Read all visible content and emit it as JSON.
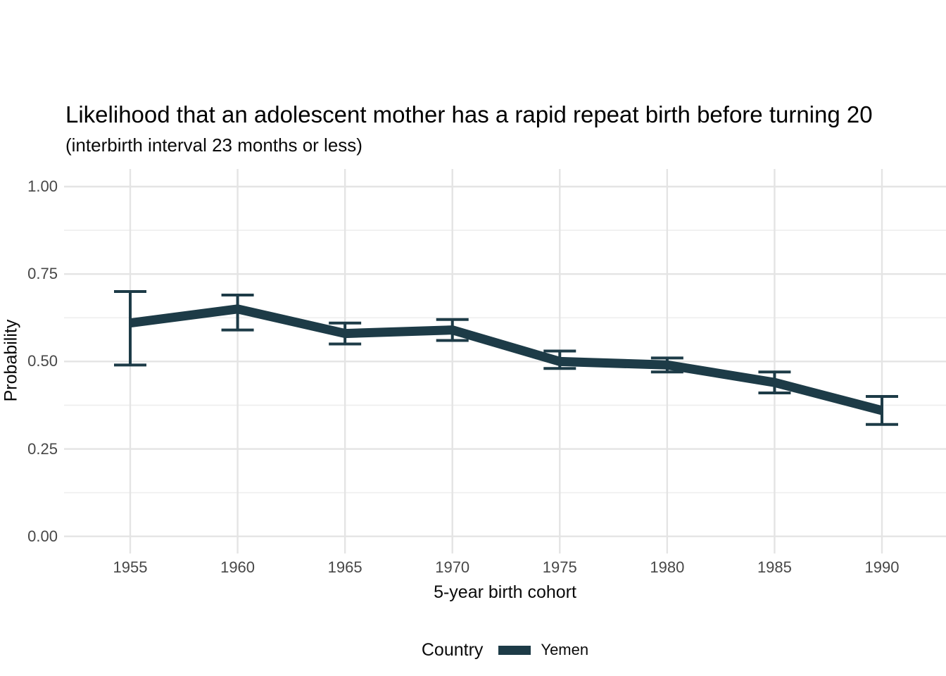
{
  "chart_data": {
    "type": "line",
    "title": "Likelihood that an adolescent mother has a rapid repeat birth before turning 20",
    "subtitle": "(interbirth interval 23 months or less)",
    "xlabel": "5-year birth cohort",
    "ylabel": "Probability",
    "x": [
      1955,
      1960,
      1965,
      1970,
      1975,
      1980,
      1985,
      1990
    ],
    "series": [
      {
        "name": "Yemen",
        "values": [
          0.61,
          0.65,
          0.58,
          0.59,
          0.5,
          0.49,
          0.44,
          0.36
        ],
        "ci_low": [
          0.49,
          0.59,
          0.55,
          0.56,
          0.48,
          0.47,
          0.41,
          0.32
        ],
        "ci_high": [
          0.7,
          0.69,
          0.61,
          0.62,
          0.53,
          0.51,
          0.47,
          0.4
        ]
      }
    ],
    "x_ticks": [
      "1955",
      "1960",
      "1965",
      "1970",
      "1975",
      "1980",
      "1985",
      "1990"
    ],
    "y_ticks": [
      "0.00",
      "0.25",
      "0.50",
      "0.75",
      "1.00"
    ],
    "ylim": [
      0,
      1
    ],
    "grid": "major and minor horizontal, major vertical only",
    "error_bars": true,
    "legend": {
      "position": "bottom",
      "title": "Country",
      "entries": [
        "Yemen"
      ]
    },
    "colors": {
      "line": "#1d3b47",
      "grid_major": "#e4e4e4",
      "grid_minor": "#eeeeee",
      "tick_text": "#474747"
    }
  }
}
